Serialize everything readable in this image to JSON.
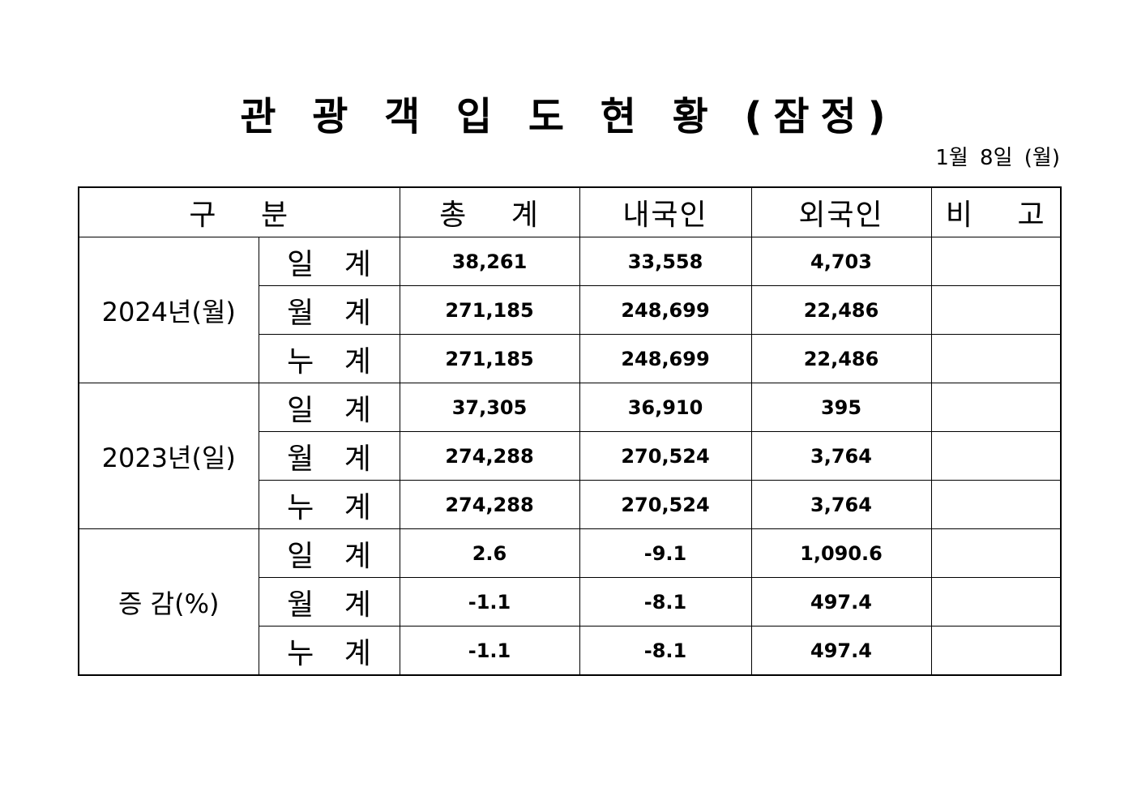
{
  "title": "관 광 객 입 도 현 황 (잠정)",
  "date": "1월 8일 (월)",
  "table": {
    "headers": {
      "category": "구 분",
      "total": "총 계",
      "domestic": "내국인",
      "foreign": "외국인",
      "remarks": "비 고"
    },
    "groups": [
      {
        "label": "2024년(월)",
        "rows": [
          {
            "label": "일 계",
            "total": "38,261",
            "domestic": "33,558",
            "foreign": "4,703",
            "remarks": ""
          },
          {
            "label": "월 계",
            "total": "271,185",
            "domestic": "248,699",
            "foreign": "22,486",
            "remarks": ""
          },
          {
            "label": "누 계",
            "total": "271,185",
            "domestic": "248,699",
            "foreign": "22,486",
            "remarks": ""
          }
        ]
      },
      {
        "label": "2023년(일)",
        "rows": [
          {
            "label": "일 계",
            "total": "37,305",
            "domestic": "36,910",
            "foreign": "395",
            "remarks": ""
          },
          {
            "label": "월 계",
            "total": "274,288",
            "domestic": "270,524",
            "foreign": "3,764",
            "remarks": ""
          },
          {
            "label": "누 계",
            "total": "274,288",
            "domestic": "270,524",
            "foreign": "3,764",
            "remarks": ""
          }
        ]
      },
      {
        "label": "증 감(%)",
        "rows": [
          {
            "label": "일 계",
            "total": "2.6",
            "domestic": "-9.1",
            "foreign": "1,090.6",
            "remarks": ""
          },
          {
            "label": "월 계",
            "total": "-1.1",
            "domestic": "-8.1",
            "foreign": "497.4",
            "remarks": ""
          },
          {
            "label": "누 계",
            "total": "-1.1",
            "domestic": "-8.1",
            "foreign": "497.4",
            "remarks": ""
          }
        ]
      }
    ]
  }
}
